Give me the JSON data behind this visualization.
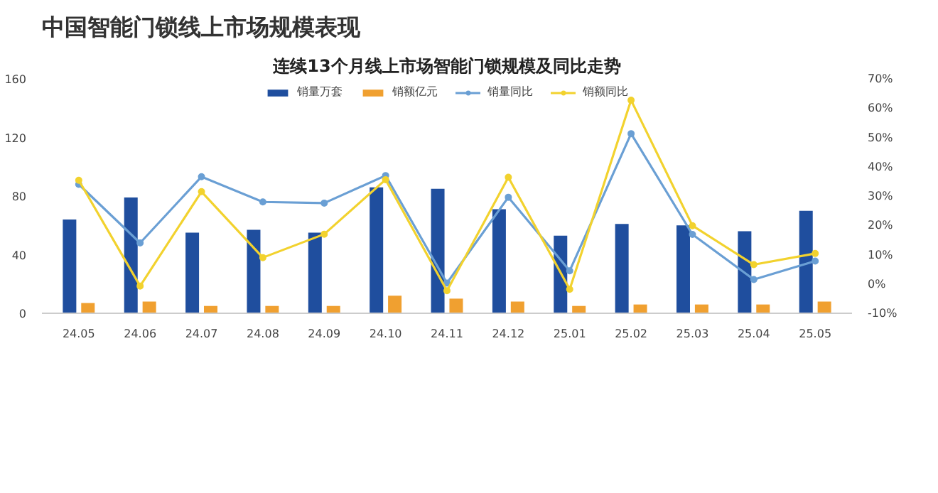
{
  "chart_data": {
    "type": "bar",
    "title": "中国智能门锁线上市场规模表现",
    "subtitle": "连续13个月线上市场智能门锁规模及同比走势",
    "categories": [
      "24.05",
      "24.06",
      "24.07",
      "24.08",
      "24.09",
      "24.10",
      "24.11",
      "24.12",
      "25.01",
      "25.02",
      "25.03",
      "25.04",
      "25.05"
    ],
    "series": [
      {
        "name": "销量万套",
        "color": "#1f4e9e",
        "values": [
          64,
          79,
          55,
          57,
          55,
          86,
          85,
          71,
          53,
          61,
          60,
          56,
          70
        ]
      },
      {
        "name": "销额亿元",
        "color": "#f0a030",
        "values": [
          7,
          8,
          5,
          5,
          5,
          12,
          10,
          8,
          5,
          6,
          6,
          6,
          8
        ]
      },
      {
        "name": "销量同比",
        "type": "line",
        "axis": "y2",
        "marker": "circle",
        "color": "#6a9fd4",
        "values": [
          34,
          14,
          36.6,
          28,
          27.6,
          37,
          0.3,
          29.6,
          4.5,
          51.3,
          16.9,
          1.5,
          7.8
        ]
      },
      {
        "name": "销额同比",
        "type": "line",
        "axis": "y2",
        "marker": "circle",
        "color": "#f2d22e",
        "values": [
          35.4,
          -0.7,
          31.5,
          9,
          17,
          35.6,
          -2.3,
          36.4,
          -1.8,
          62.7,
          19.9,
          6.6,
          10.4
        ]
      }
    ],
    "ylim": [
      0,
      160
    ],
    "yticks": [
      0,
      40,
      80,
      120,
      160
    ],
    "y2lim": [
      -10,
      70
    ],
    "y2ticks": [
      {
        "value": -10,
        "label": "-10%"
      },
      {
        "value": 0,
        "label": "0%"
      },
      {
        "value": 10,
        "label": "10%"
      },
      {
        "value": 20,
        "label": "20%"
      },
      {
        "value": 30,
        "label": "30%"
      },
      {
        "value": 40,
        "label": "40%"
      },
      {
        "value": 50,
        "label": "50%"
      },
      {
        "value": 60,
        "label": "60%"
      },
      {
        "value": 70,
        "label": "70%"
      }
    ],
    "grid": false,
    "legend": "top",
    "line_style": "solid"
  }
}
